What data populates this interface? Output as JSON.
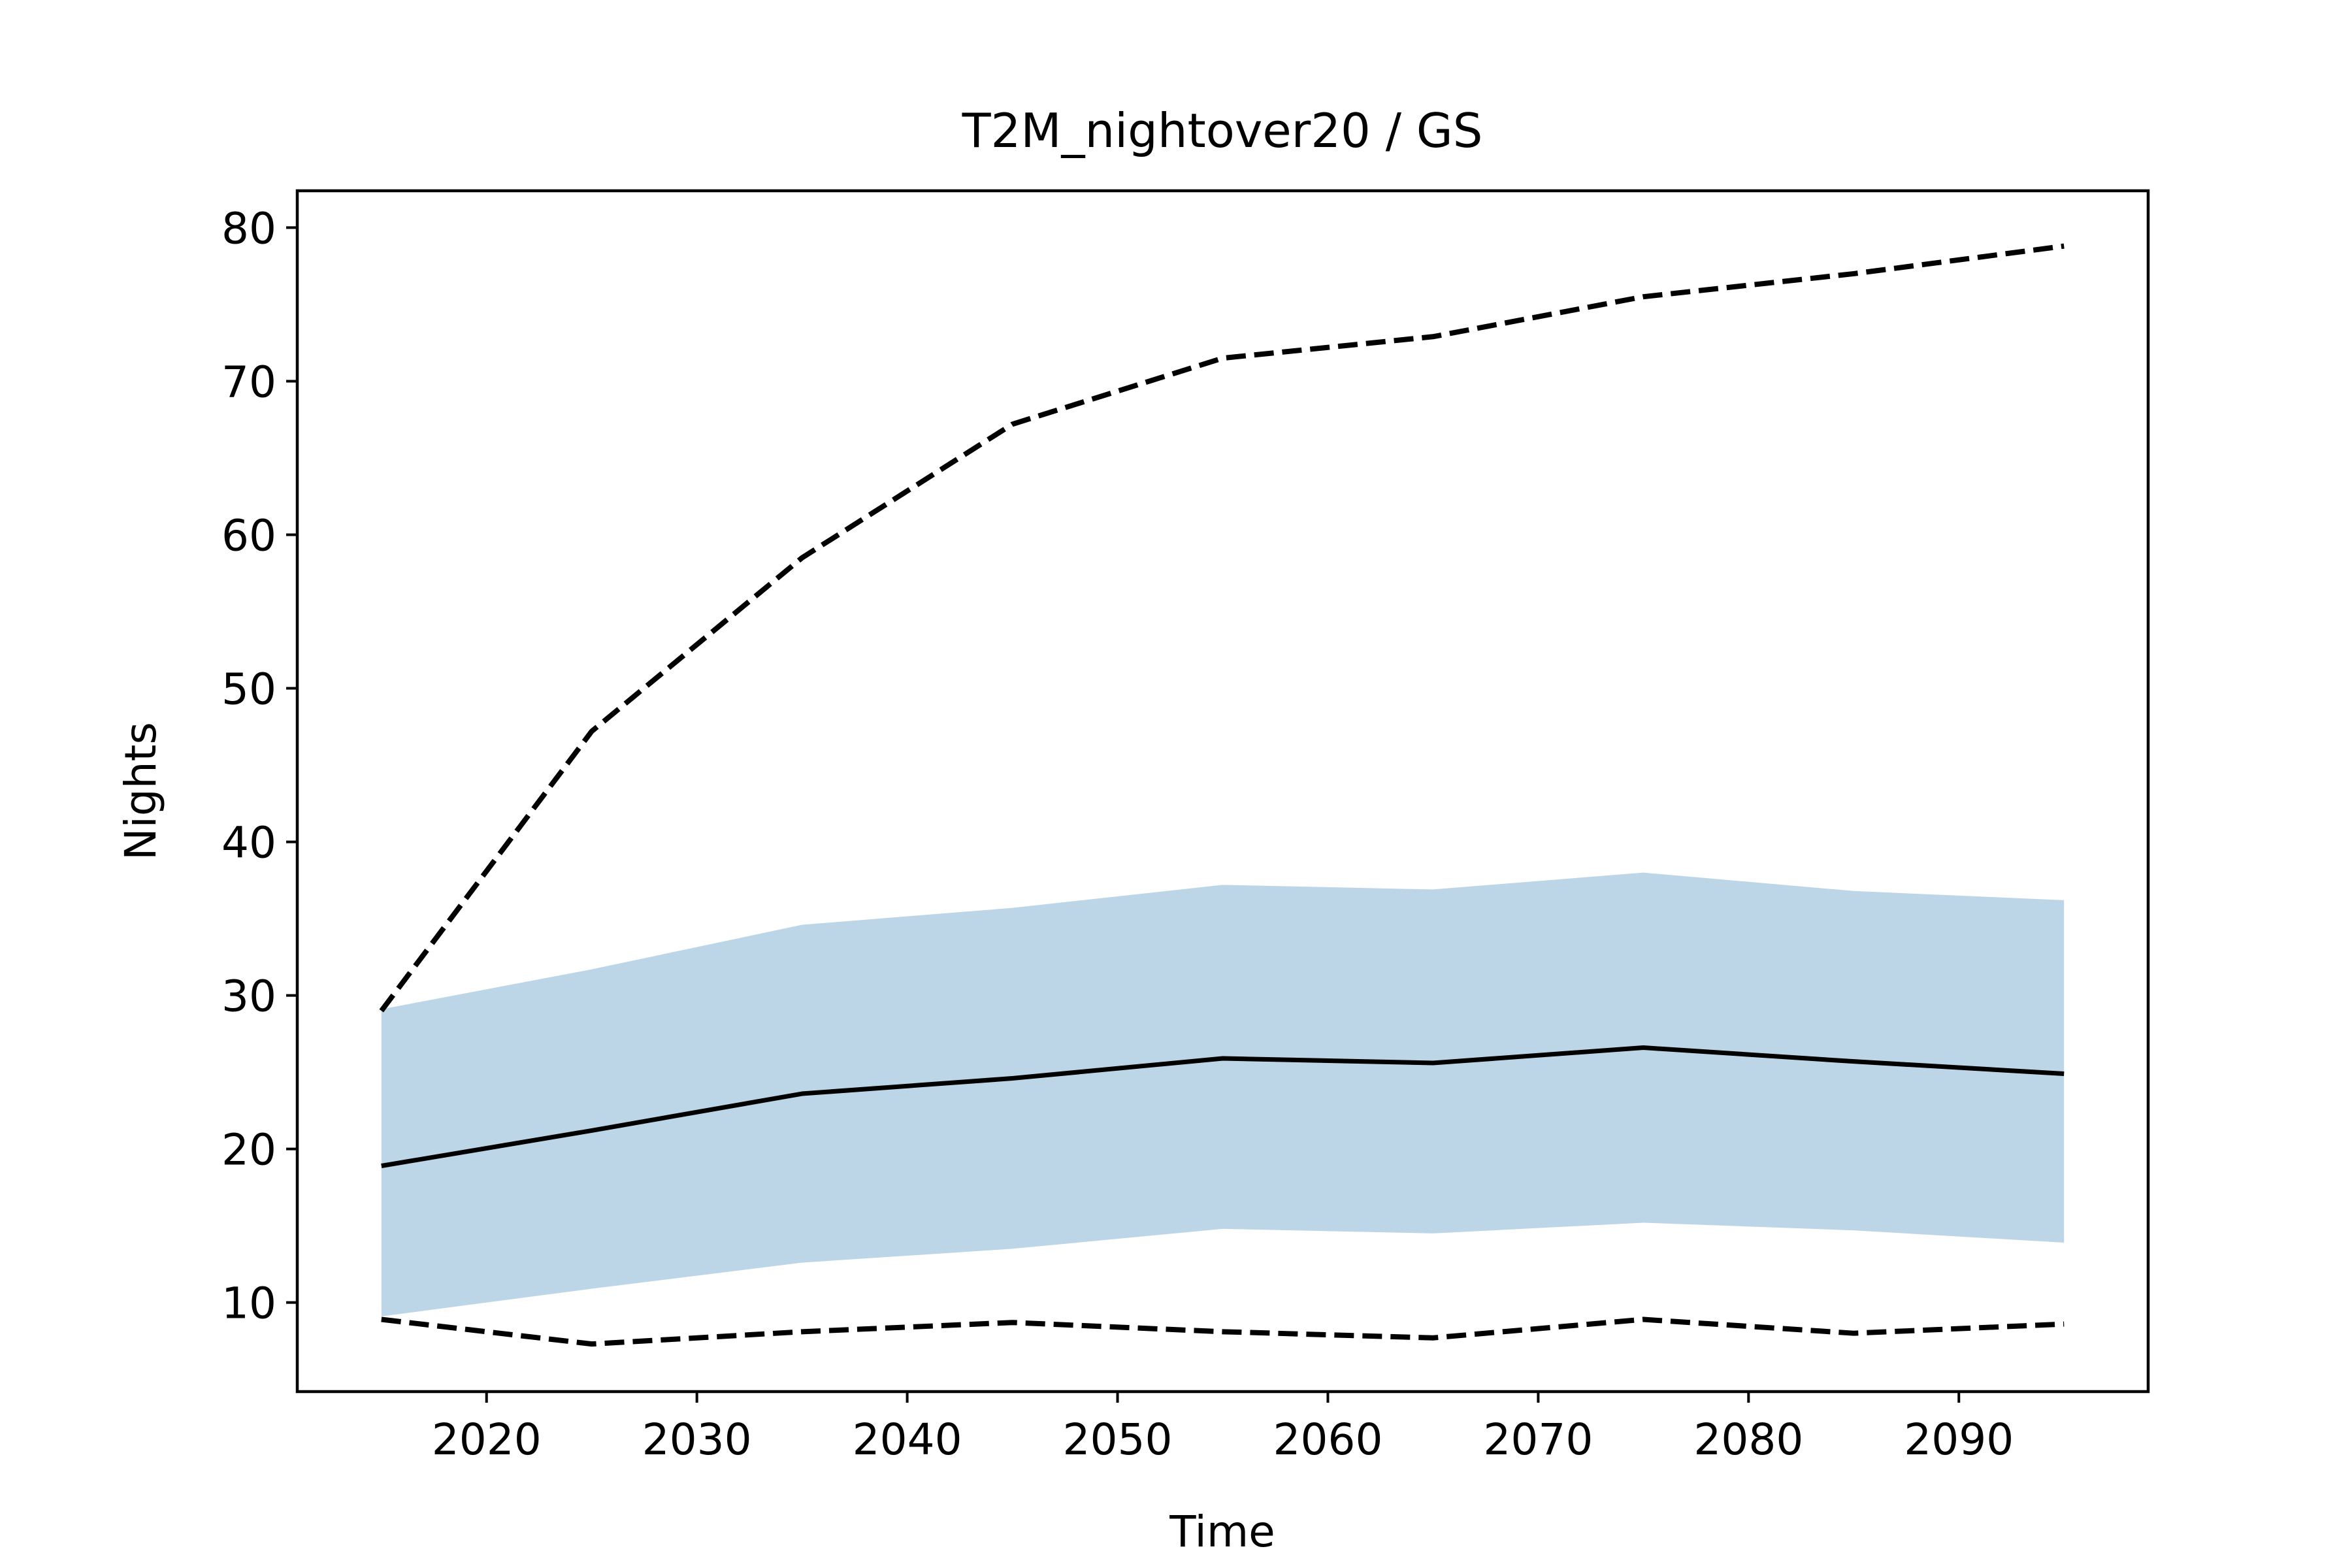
{
  "chart_data": {
    "type": "line",
    "title": "T2M_nightover20 / GS",
    "xlabel": "Time",
    "ylabel": "Nights",
    "xlim": [
      2011,
      2099
    ],
    "ylim": [
      4.2,
      82.4
    ],
    "xticks": [
      2020,
      2030,
      2040,
      2050,
      2060,
      2070,
      2080,
      2090
    ],
    "yticks": [
      10,
      20,
      30,
      40,
      50,
      60,
      70,
      80
    ],
    "grid": false,
    "x": [
      2015,
      2025,
      2035,
      2045,
      2055,
      2065,
      2075,
      2085,
      2095
    ],
    "series": [
      {
        "style": "solid",
        "values": [
          18.9,
          21.2,
          23.6,
          24.6,
          25.9,
          25.6,
          26.6,
          25.7,
          24.9
        ]
      },
      {
        "style": "dashed",
        "values": [
          29.0,
          47.2,
          58.5,
          67.2,
          71.5,
          72.9,
          75.5,
          77.0,
          78.8
        ]
      },
      {
        "style": "dashed",
        "values": [
          8.9,
          7.3,
          8.1,
          8.7,
          8.1,
          7.7,
          8.9,
          8.0,
          8.6
        ]
      }
    ],
    "band": {
      "lower": [
        9.1,
        10.9,
        12.6,
        13.5,
        14.8,
        14.5,
        15.2,
        14.7,
        13.9
      ],
      "upper": [
        29.1,
        31.7,
        34.6,
        35.7,
        37.2,
        36.9,
        38.0,
        36.8,
        36.2
      ]
    },
    "colors": {
      "line": "#000000",
      "band": "#bcd6e8",
      "axes": "#000000"
    }
  }
}
